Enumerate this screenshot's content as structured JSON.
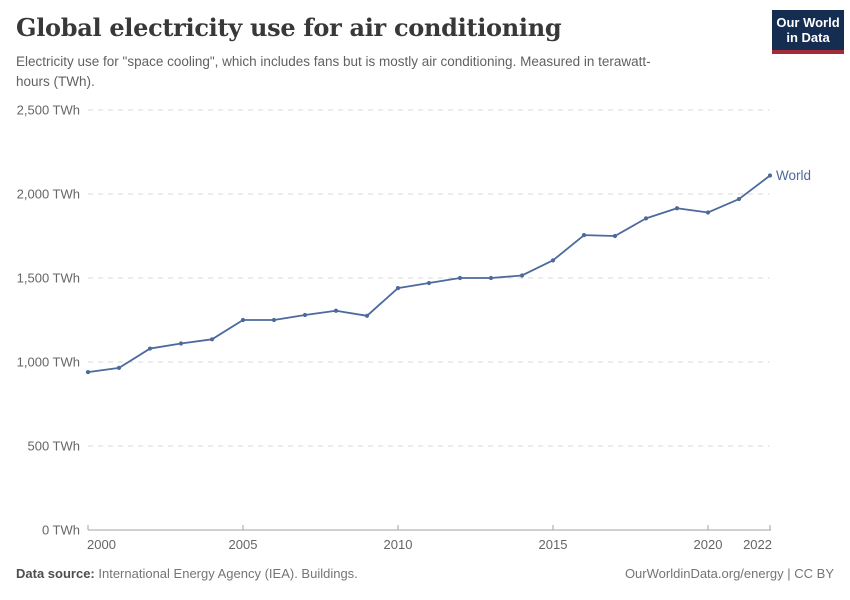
{
  "header": {
    "title": "Global electricity use for air conditioning",
    "subtitle": "Electricity use for \"space cooling\", which includes fans but is mostly air conditioning. Measured in terawatt-hours (TWh).",
    "logo": {
      "line1": "Our World",
      "line2": "in Data",
      "bg_color": "#142d50",
      "accent_color": "#a52b3a"
    }
  },
  "chart_data": {
    "type": "line",
    "title": "Global electricity use for air conditioning",
    "unit": "TWh",
    "x": [
      2000,
      2001,
      2002,
      2003,
      2004,
      2005,
      2006,
      2007,
      2008,
      2009,
      2010,
      2011,
      2012,
      2013,
      2014,
      2015,
      2016,
      2017,
      2018,
      2019,
      2020,
      2021,
      2022
    ],
    "series": [
      {
        "name": "World",
        "color": "#4c6a9c",
        "values": [
          940,
          965,
          1080,
          1110,
          1135,
          1250,
          1250,
          1280,
          1305,
          1275,
          1440,
          1470,
          1500,
          1500,
          1515,
          1605,
          1755,
          1750,
          1855,
          1915,
          1890,
          1970,
          2110
        ]
      }
    ],
    "xlim": [
      2000,
      2022
    ],
    "ylim": [
      0,
      2500
    ],
    "x_tick_values": [
      2000,
      2005,
      2010,
      2015,
      2020,
      2022
    ],
    "x_tick_labels": [
      "2000",
      "2005",
      "2010",
      "2015",
      "2020",
      "2022"
    ],
    "y_tick_values": [
      0,
      500,
      1000,
      1500,
      2000,
      2500
    ],
    "y_tick_labels": [
      "0 TWh",
      "500 TWh",
      "1,000 TWh",
      "1,500 TWh",
      "2,000 TWh",
      "2,500 TWh"
    ],
    "grid": "horizontal-dashed",
    "legend_position": "end-of-line"
  },
  "footer": {
    "datasource_label": "Data source:",
    "datasource_text": "International Energy Agency (IEA). Buildings.",
    "credit": "OurWorldinData.org/energy | CC BY"
  }
}
